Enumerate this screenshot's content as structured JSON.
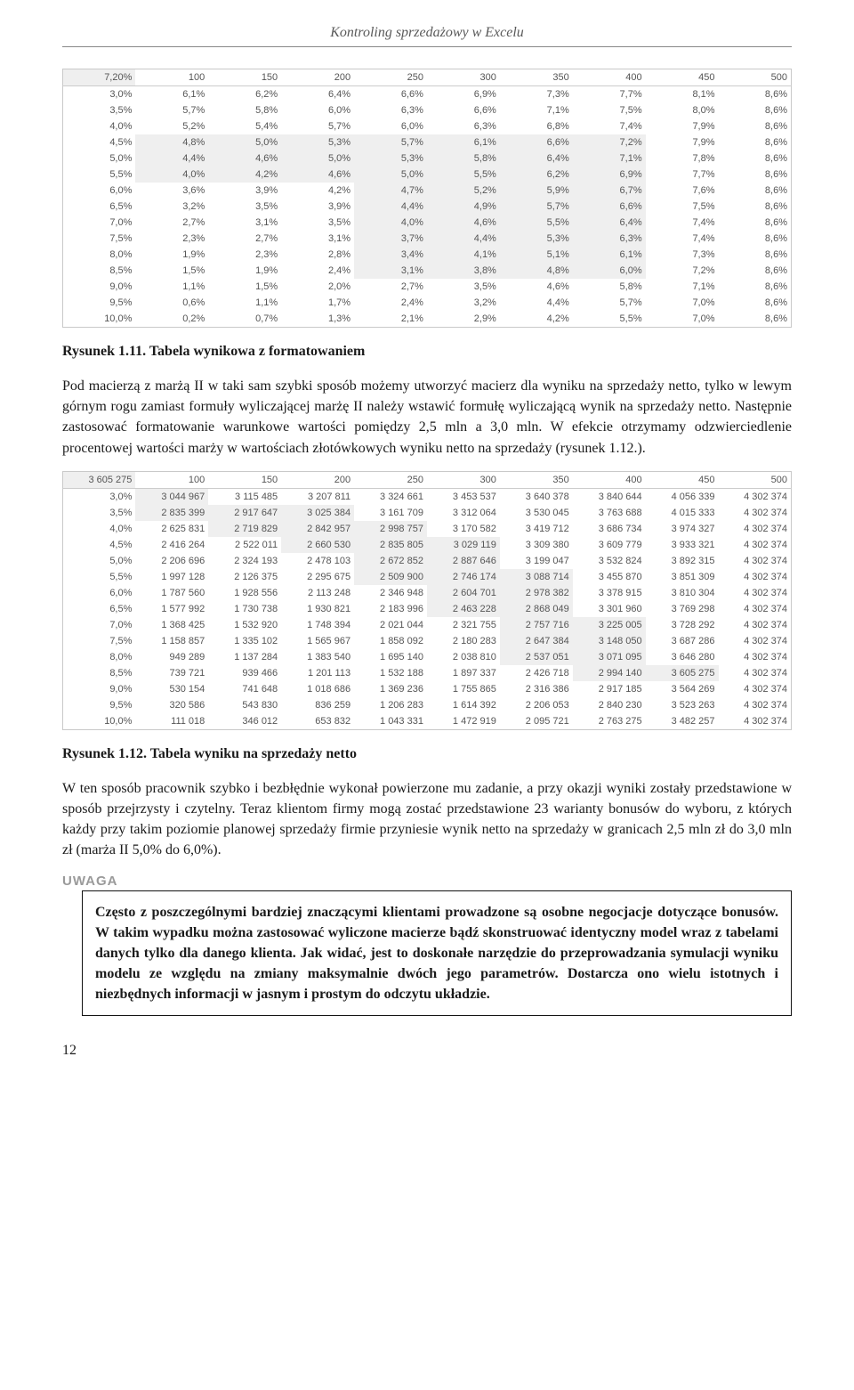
{
  "running_head": "Kontroling sprzedażowy w Excelu",
  "table1": {
    "col_headers": [
      "100",
      "150",
      "200",
      "250",
      "300",
      "350",
      "400",
      "450",
      "500"
    ],
    "corner": "7,20%",
    "row_heads": [
      "3,0%",
      "3,5%",
      "4,0%",
      "4,5%",
      "5,0%",
      "5,5%",
      "6,0%",
      "6,5%",
      "7,0%",
      "7,5%",
      "8,0%",
      "8,5%",
      "9,0%",
      "9,5%",
      "10,0%"
    ],
    "cells": [
      [
        "6,1%",
        "6,2%",
        "6,4%",
        "6,6%",
        "6,9%",
        "7,3%",
        "7,7%",
        "8,1%",
        "8,6%"
      ],
      [
        "5,7%",
        "5,8%",
        "6,0%",
        "6,3%",
        "6,6%",
        "7,1%",
        "7,5%",
        "8,0%",
        "8,6%"
      ],
      [
        "5,2%",
        "5,4%",
        "5,7%",
        "6,0%",
        "6,3%",
        "6,8%",
        "7,4%",
        "7,9%",
        "8,6%"
      ],
      [
        "4,8%",
        "5,0%",
        "5,3%",
        "5,7%",
        "6,1%",
        "6,6%",
        "7,2%",
        "7,9%",
        "8,6%"
      ],
      [
        "4,4%",
        "4,6%",
        "5,0%",
        "5,3%",
        "5,8%",
        "6,4%",
        "7,1%",
        "7,8%",
        "8,6%"
      ],
      [
        "4,0%",
        "4,2%",
        "4,6%",
        "5,0%",
        "5,5%",
        "6,2%",
        "6,9%",
        "7,7%",
        "8,6%"
      ],
      [
        "3,6%",
        "3,9%",
        "4,2%",
        "4,7%",
        "5,2%",
        "5,9%",
        "6,7%",
        "7,6%",
        "8,6%"
      ],
      [
        "3,2%",
        "3,5%",
        "3,9%",
        "4,4%",
        "4,9%",
        "5,7%",
        "6,6%",
        "7,5%",
        "8,6%"
      ],
      [
        "2,7%",
        "3,1%",
        "3,5%",
        "4,0%",
        "4,6%",
        "5,5%",
        "6,4%",
        "7,4%",
        "8,6%"
      ],
      [
        "2,3%",
        "2,7%",
        "3,1%",
        "3,7%",
        "4,4%",
        "5,3%",
        "6,3%",
        "7,4%",
        "8,6%"
      ],
      [
        "1,9%",
        "2,3%",
        "2,8%",
        "3,4%",
        "4,1%",
        "5,1%",
        "6,1%",
        "7,3%",
        "8,6%"
      ],
      [
        "1,5%",
        "1,9%",
        "2,4%",
        "3,1%",
        "3,8%",
        "4,8%",
        "6,0%",
        "7,2%",
        "8,6%"
      ],
      [
        "1,1%",
        "1,5%",
        "2,0%",
        "2,7%",
        "3,5%",
        "4,6%",
        "5,8%",
        "7,1%",
        "8,6%"
      ],
      [
        "0,6%",
        "1,1%",
        "1,7%",
        "2,4%",
        "3,2%",
        "4,4%",
        "5,7%",
        "7,0%",
        "8,6%"
      ],
      [
        "0,2%",
        "0,7%",
        "1,3%",
        "2,1%",
        "2,9%",
        "4,2%",
        "5,5%",
        "7,0%",
        "8,6%"
      ]
    ],
    "highlight_rows": [
      3,
      4,
      5
    ],
    "highlight_cols": [
      3,
      4,
      5,
      6
    ]
  },
  "caption1": "Rysunek 1.11. Tabela wynikowa z formatowaniem",
  "para1": "Pod macierzą z marżą II w taki sam szybki sposób możemy utworzyć macierz dla wyniku na sprzedaży netto, tylko w lewym górnym rogu zamiast formuły wyliczającej marżę II należy wstawić formułę wyliczającą wynik na sprzedaży netto. Następnie zastosować formatowanie warunkowe wartości pomiędzy 2,5 mln a 3,0 mln. W efekcie otrzymamy odzwierciedlenie procentowej wartości marży w wartościach złotówkowych wyniku netto na sprzedaży (rysunek 1.12.).",
  "table2": {
    "col_headers": [
      "100",
      "150",
      "200",
      "250",
      "300",
      "350",
      "400",
      "450",
      "500"
    ],
    "corner": "3 605 275",
    "row_heads": [
      "3,0%",
      "3,5%",
      "4,0%",
      "4,5%",
      "5,0%",
      "5,5%",
      "6,0%",
      "6,5%",
      "7,0%",
      "7,5%",
      "8,0%",
      "8,5%",
      "9,0%",
      "9,5%",
      "10,0%"
    ],
    "cells": [
      [
        "3 044 967",
        "3 115 485",
        "3 207 811",
        "3 324 661",
        "3 453 537",
        "3 640 378",
        "3 840 644",
        "4 056 339",
        "4 302 374"
      ],
      [
        "2 835 399",
        "2 917 647",
        "3 025 384",
        "3 161 709",
        "3 312 064",
        "3 530 045",
        "3 763 688",
        "4 015 333",
        "4 302 374"
      ],
      [
        "2 625 831",
        "2 719 829",
        "2 842 957",
        "2 998 757",
        "3 170 582",
        "3 419 712",
        "3 686 734",
        "3 974 327",
        "4 302 374"
      ],
      [
        "2 416 264",
        "2 522 011",
        "2 660 530",
        "2 835 805",
        "3 029 119",
        "3 309 380",
        "3 609 779",
        "3 933 321",
        "4 302 374"
      ],
      [
        "2 206 696",
        "2 324 193",
        "2 478 103",
        "2 672 852",
        "2 887 646",
        "3 199 047",
        "3 532 824",
        "3 892 315",
        "4 302 374"
      ],
      [
        "1 997 128",
        "2 126 375",
        "2 295 675",
        "2 509 900",
        "2 746 174",
        "3 088 714",
        "3 455 870",
        "3 851 309",
        "4 302 374"
      ],
      [
        "1 787 560",
        "1 928 556",
        "2 113 248",
        "2 346 948",
        "2 604 701",
        "2 978 382",
        "3 378 915",
        "3 810 304",
        "4 302 374"
      ],
      [
        "1 577 992",
        "1 730 738",
        "1 930 821",
        "2 183 996",
        "2 463 228",
        "2 868 049",
        "3 301 960",
        "3 769 298",
        "4 302 374"
      ],
      [
        "1 368 425",
        "1 532 920",
        "1 748 394",
        "2 021 044",
        "2 321 755",
        "2 757 716",
        "3 225 005",
        "3 728 292",
        "4 302 374"
      ],
      [
        "1 158 857",
        "1 335 102",
        "1 565 967",
        "1 858 092",
        "2 180 283",
        "2 647 384",
        "3 148 050",
        "3 687 286",
        "4 302 374"
      ],
      [
        "949 289",
        "1 137 284",
        "1 383 540",
        "1 695 140",
        "2 038 810",
        "2 537 051",
        "3 071 095",
        "3 646 280",
        "4 302 374"
      ],
      [
        "739 721",
        "939 466",
        "1 201 113",
        "1 532 188",
        "1 897 337",
        "2 426 718",
        "2 994 140",
        "3 605 275",
        "4 302 374"
      ],
      [
        "530 154",
        "741 648",
        "1 018 686",
        "1 369 236",
        "1 755 865",
        "2 316 386",
        "2 917 185",
        "3 564 269",
        "4 302 374"
      ],
      [
        "320 586",
        "543 830",
        "836 259",
        "1 206 283",
        "1 614 392",
        "2 206 053",
        "2 840 230",
        "3 523 263",
        "4 302 374"
      ],
      [
        "111 018",
        "346 012",
        "653 832",
        "1 043 331",
        "1 472 919",
        "2 095 721",
        "2 763 275",
        "3 482 257",
        "4 302 374"
      ]
    ],
    "highlight_map": {
      "0": [
        0
      ],
      "1": [
        0,
        1,
        2
      ],
      "2": [
        1,
        2,
        3
      ],
      "3": [
        2,
        3,
        4
      ],
      "4": [
        3,
        4
      ],
      "5": [
        3,
        4,
        5
      ],
      "6": [
        4,
        5
      ],
      "7": [
        4,
        5
      ],
      "8": [
        5,
        6
      ],
      "9": [
        5,
        6
      ],
      "10": [
        5,
        6
      ],
      "11": [
        6,
        7
      ]
    }
  },
  "caption2": "Rysunek 1.12. Tabela wyniku na sprzedaży netto",
  "para2": "W ten sposób pracownik szybko i bezbłędnie wykonał powierzone mu zadanie, a przy okazji wyniki zostały przedstawione w sposób przejrzysty i czytelny. Teraz klientom firmy mogą zostać przedstawione 23 warianty bonusów do wyboru, z których każdy przy takim poziomie planowej sprzedaży firmie przyniesie wynik netto na sprzedaży w granicach 2,5 mln zł do 3,0 mln zł (marża II 5,0% do 6,0%).",
  "uwaga_label": "UWAGA",
  "uwaga_text": "Często z poszczególnymi bardziej znaczącymi klientami prowadzone są osobne negocjacje dotyczące bonusów. W takim wypadku można zastosować wyliczone macierze bądź skonstruować identyczny model wraz z tabelami danych tylko dla danego klienta. Jak widać, jest to doskonałe narzędzie do przeprowadzania symulacji wyniku modelu ze względu na zmiany maksymalnie dwóch jego parametrów. Dostarcza ono wielu istotnych i niezbędnych informacji w jasnym i prostym do odczytu układzie.",
  "page_number": "12"
}
